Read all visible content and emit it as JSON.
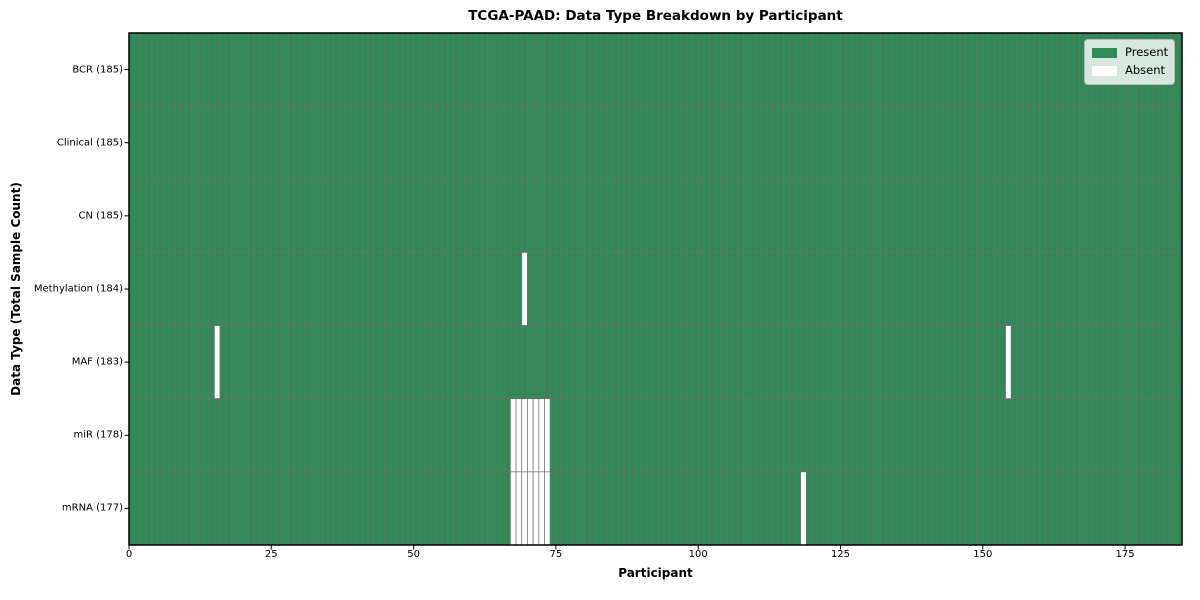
{
  "chart_data": {
    "type": "heatmap",
    "title": "TCGA-PAAD: Data Type Breakdown by Participant",
    "xlabel": "Participant",
    "ylabel": "Data Type (Total Sample Count)",
    "n_participants": 185,
    "x_range": [
      0,
      185
    ],
    "xticks": [
      0,
      25,
      50,
      75,
      100,
      125,
      150,
      175
    ],
    "rows": [
      {
        "name": "BCR",
        "label": "BCR (185)",
        "total": 185,
        "missing": []
      },
      {
        "name": "Clinical",
        "label": "Clinical (185)",
        "total": 185,
        "missing": []
      },
      {
        "name": "CN",
        "label": "CN (185)",
        "total": 185,
        "missing": []
      },
      {
        "name": "Methylation",
        "label": "Methylation (184)",
        "total": 184,
        "missing": [
          69
        ]
      },
      {
        "name": "MAF",
        "label": "MAF (183)",
        "total": 183,
        "missing": [
          15,
          154
        ]
      },
      {
        "name": "miR",
        "label": "miR (178)",
        "total": 178,
        "missing": [
          67,
          68,
          69,
          70,
          71,
          72,
          73
        ]
      },
      {
        "name": "mRNA",
        "label": "mRNA (177)",
        "total": 177,
        "missing": [
          67,
          68,
          69,
          70,
          71,
          72,
          73,
          118
        ]
      }
    ],
    "legend": [
      {
        "name": "present",
        "label": "Present",
        "color": "#2e8b57"
      },
      {
        "name": "absent",
        "label": "Absent",
        "color": "#ffffff"
      }
    ],
    "colors": {
      "present": "#2e8b57",
      "absent": "#ffffff",
      "cell_edge": "#6f6f6f",
      "spine": "#000000",
      "tick": "#000000"
    },
    "legend_position": "upper right",
    "grid": false
  }
}
